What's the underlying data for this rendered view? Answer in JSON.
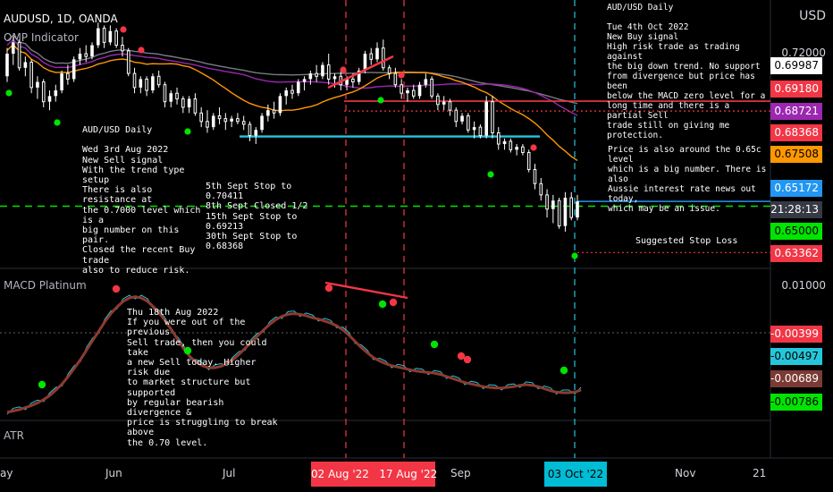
{
  "header": {
    "symbol": "AUDUSD, 1D, OANDA",
    "indicator": "OMP Indicator"
  },
  "axis": {
    "currency": "USD",
    "top_tick": "0.72000",
    "macd_tick": "0.01000"
  },
  "price_labels": [
    {
      "value": "0.69987",
      "bg": "#ffffff",
      "fg": "#000000"
    },
    {
      "value": "0.69180",
      "bg": "#f23645",
      "fg": "#ffffff"
    },
    {
      "value": "0.68721",
      "bg": "#9c27b0",
      "fg": "#ffffff"
    },
    {
      "value": "0.68368",
      "bg": "#f23645",
      "fg": "#ffffff"
    },
    {
      "value": "0.67508",
      "bg": "#ff9800",
      "fg": "#000000"
    },
    {
      "value": "0.65172",
      "bg": "#2196f3",
      "fg": "#ffffff"
    },
    {
      "value": "21:28:13",
      "bg": "#363a45",
      "fg": "#ffffff"
    },
    {
      "value": "0.65000",
      "bg": "#00e400",
      "fg": "#000000"
    },
    {
      "value": "0.63362",
      "bg": "#f23645",
      "fg": "#ffffff"
    }
  ],
  "macd_labels": [
    {
      "value": "-0.00399",
      "bg": "#f23645",
      "fg": "#ffffff"
    },
    {
      "value": "-0.00497",
      "bg": "#26c6da",
      "fg": "#000000"
    },
    {
      "value": "-0.00689",
      "bg": "#7b3b34",
      "fg": "#ffffff"
    },
    {
      "value": "-0.00786",
      "bg": "#00e400",
      "fg": "#000000"
    }
  ],
  "panels": {
    "macd": "MACD Platinum",
    "atr": "ATR"
  },
  "x_axis": {
    "labels": [
      "ay",
      "Jun",
      "Jul",
      "Sep",
      "Nov",
      "21"
    ],
    "highlight_red": "02 Aug '22   17 Aug '22",
    "highlight_blue": "03 Oct '22"
  },
  "annotations": {
    "oct": "AUD/USD Daily\n\nTue 4th Oct 2022\nNew Buy signal\nHigh risk trade as trading against\nthe big down trend. No support\nfrom divergence but price has been\nbelow the MACD zero level for a\nlong time and there is a partial Sell\ntrade still on giving me protection.",
    "price": "Price is also around the 0.65c level\nwhich is a big number. There is also\nAussie interest rate news out today,\nwhich may be an issue.",
    "aug3": "AUD/USD Daily\n\nWed 3rd Aug 2022\nNew Sell signal\nWith the trend type setup\nThere is also resistance at\nthe 0.7000 level which is a\nbig number on this pair.\nClosed the recent Buy trade\nalso to reduce risk.",
    "stops": "5th Sept Stop to 0.70411\n8th Sept Closed 1/2\n15th Sept Stop to 0.69213\n30th Sept Stop to 0.68368",
    "aug18": "Thu 18th Aug 2022\nIf you were out of the previous\nSell trade, then you could take\na new Sell today. Higher risk due\nto market structure but supported\nby regular bearish divergence &\nprice is struggling to break above\nthe 0.70 level.",
    "stop": "Suggested Stop Loss"
  },
  "chart_data": {
    "type": "candlestick",
    "symbol": "AUDUSD",
    "timeframe": "1D",
    "price_range": [
      0.628,
      0.723
    ],
    "candles": [
      [
        0.696,
        0.706,
        0.694,
        0.704
      ],
      [
        0.704,
        0.71,
        0.7,
        0.708
      ],
      [
        0.708,
        0.709,
        0.698,
        0.699
      ],
      [
        0.699,
        0.703,
        0.696,
        0.701
      ],
      [
        0.701,
        0.702,
        0.69,
        0.692
      ],
      [
        0.692,
        0.696,
        0.688,
        0.694
      ],
      [
        0.694,
        0.695,
        0.685,
        0.687
      ],
      [
        0.687,
        0.691,
        0.684,
        0.689
      ],
      [
        0.689,
        0.693,
        0.687,
        0.691
      ],
      [
        0.691,
        0.698,
        0.69,
        0.697
      ],
      [
        0.697,
        0.7,
        0.693,
        0.695
      ],
      [
        0.695,
        0.703,
        0.694,
        0.702
      ],
      [
        0.702,
        0.706,
        0.7,
        0.704
      ],
      [
        0.704,
        0.707,
        0.701,
        0.703
      ],
      [
        0.703,
        0.708,
        0.702,
        0.707
      ],
      [
        0.707,
        0.715,
        0.706,
        0.713
      ],
      [
        0.713,
        0.714,
        0.706,
        0.708
      ],
      [
        0.708,
        0.714,
        0.707,
        0.712
      ],
      [
        0.712,
        0.713,
        0.706,
        0.707
      ],
      [
        0.707,
        0.71,
        0.703,
        0.705
      ],
      [
        0.705,
        0.706,
        0.696,
        0.697
      ],
      [
        0.697,
        0.699,
        0.69,
        0.692
      ],
      [
        0.692,
        0.696,
        0.69,
        0.695
      ],
      [
        0.695,
        0.696,
        0.689,
        0.691
      ],
      [
        0.691,
        0.697,
        0.69,
        0.696
      ],
      [
        0.696,
        0.698,
        0.692,
        0.693
      ],
      [
        0.693,
        0.694,
        0.685,
        0.687
      ],
      [
        0.687,
        0.691,
        0.685,
        0.69
      ],
      [
        0.69,
        0.692,
        0.686,
        0.688
      ],
      [
        0.688,
        0.689,
        0.683,
        0.685
      ],
      [
        0.685,
        0.689,
        0.683,
        0.688
      ],
      [
        0.688,
        0.69,
        0.682,
        0.683
      ],
      [
        0.683,
        0.685,
        0.678,
        0.68
      ],
      [
        0.68,
        0.684,
        0.676,
        0.678
      ],
      [
        0.678,
        0.683,
        0.677,
        0.682
      ],
      [
        0.682,
        0.685,
        0.679,
        0.681
      ],
      [
        0.681,
        0.683,
        0.677,
        0.68
      ],
      [
        0.68,
        0.682,
        0.678,
        0.681
      ],
      [
        0.681,
        0.683,
        0.679,
        0.68
      ],
      [
        0.68,
        0.682,
        0.677,
        0.679
      ],
      [
        0.679,
        0.68,
        0.673,
        0.675
      ],
      [
        0.675,
        0.678,
        0.672,
        0.677
      ],
      [
        0.677,
        0.683,
        0.676,
        0.682
      ],
      [
        0.682,
        0.686,
        0.68,
        0.684
      ],
      [
        0.684,
        0.687,
        0.681,
        0.683
      ],
      [
        0.683,
        0.69,
        0.682,
        0.689
      ],
      [
        0.689,
        0.692,
        0.686,
        0.691
      ],
      [
        0.691,
        0.693,
        0.688,
        0.69
      ],
      [
        0.69,
        0.695,
        0.689,
        0.694
      ],
      [
        0.694,
        0.696,
        0.691,
        0.695
      ],
      [
        0.695,
        0.698,
        0.693,
        0.697
      ],
      [
        0.697,
        0.7,
        0.694,
        0.696
      ],
      [
        0.696,
        0.701,
        0.695,
        0.7
      ],
      [
        0.7,
        0.704,
        0.693,
        0.695
      ],
      [
        0.695,
        0.697,
        0.692,
        0.696
      ],
      [
        0.696,
        0.698,
        0.691,
        0.693
      ],
      [
        0.693,
        0.696,
        0.691,
        0.695
      ],
      [
        0.695,
        0.697,
        0.692,
        0.694
      ],
      [
        0.694,
        0.699,
        0.693,
        0.698
      ],
      [
        0.698,
        0.705,
        0.697,
        0.704
      ],
      [
        0.704,
        0.706,
        0.7,
        0.702
      ],
      [
        0.702,
        0.708,
        0.701,
        0.706
      ],
      [
        0.706,
        0.709,
        0.698,
        0.699
      ],
      [
        0.699,
        0.7,
        0.695,
        0.697
      ],
      [
        0.697,
        0.699,
        0.692,
        0.693
      ],
      [
        0.693,
        0.695,
        0.688,
        0.69
      ],
      [
        0.69,
        0.692,
        0.687,
        0.691
      ],
      [
        0.691,
        0.693,
        0.688,
        0.689
      ],
      [
        0.689,
        0.694,
        0.688,
        0.693
      ],
      [
        0.693,
        0.697,
        0.692,
        0.695
      ],
      [
        0.695,
        0.696,
        0.688,
        0.689
      ],
      [
        0.689,
        0.69,
        0.684,
        0.686
      ],
      [
        0.686,
        0.689,
        0.684,
        0.687
      ],
      [
        0.687,
        0.688,
        0.682,
        0.684
      ],
      [
        0.684,
        0.685,
        0.678,
        0.68
      ],
      [
        0.68,
        0.683,
        0.679,
        0.682
      ],
      [
        0.682,
        0.683,
        0.676,
        0.677
      ],
      [
        0.677,
        0.68,
        0.674,
        0.678
      ],
      [
        0.678,
        0.679,
        0.674,
        0.675
      ],
      [
        0.675,
        0.689,
        0.674,
        0.687
      ],
      [
        0.687,
        0.689,
        0.674,
        0.676
      ],
      [
        0.676,
        0.678,
        0.67,
        0.672
      ],
      [
        0.672,
        0.674,
        0.67,
        0.673
      ],
      [
        0.673,
        0.674,
        0.669,
        0.67
      ],
      [
        0.67,
        0.672,
        0.668,
        0.671
      ],
      [
        0.671,
        0.672,
        0.668,
        0.669
      ],
      [
        0.669,
        0.67,
        0.662,
        0.663
      ],
      [
        0.663,
        0.665,
        0.656,
        0.658
      ],
      [
        0.658,
        0.66,
        0.652,
        0.654
      ],
      [
        0.654,
        0.656,
        0.646,
        0.649
      ],
      [
        0.649,
        0.654,
        0.644,
        0.652
      ],
      [
        0.652,
        0.653,
        0.642,
        0.643
      ],
      [
        0.643,
        0.655,
        0.641,
        0.653
      ],
      [
        0.653,
        0.655,
        0.645,
        0.646
      ],
      [
        0.646,
        0.654,
        0.645,
        0.6517
      ]
    ],
    "support_resistance": {
      "resistance": 0.6872,
      "stop_dotted": 0.6837,
      "support": 0.6747,
      "price_line": 0.6517,
      "suggested_stop": 0.6336,
      "big_number": 0.65
    },
    "macd_range": [
      -0.011,
      0.0115
    ],
    "macd_values": [
      -0.0098,
      -0.0096,
      -0.0094,
      -0.0091,
      -0.0088,
      -0.0084,
      -0.0079,
      -0.0073,
      -0.0065,
      -0.0056,
      -0.0045,
      -0.0033,
      -0.002,
      -0.0006,
      0.0008,
      0.0022,
      0.0036,
      0.0048,
      0.0058,
      0.0066,
      0.0071,
      0.0073,
      0.0071,
      0.0066,
      0.0058,
      0.0048,
      0.0036,
      0.0023,
      0.0009,
      -0.0005,
      -0.0016,
      -0.0024,
      -0.0029,
      -0.0032,
      -0.0032,
      -0.003,
      -0.0026,
      -0.002,
      -0.0012,
      -0.0003,
      0.0006,
      0.0015,
      0.0024,
      0.0032,
      0.0039,
      0.0044,
      0.0047,
      0.0048,
      0.0047,
      0.0045,
      0.0042,
      0.004,
      0.0037,
      0.0034,
      0.003,
      0.0024,
      0.0016,
      0.0007,
      -0.0002,
      -0.001,
      -0.0017,
      -0.0022,
      -0.0026,
      -0.0029,
      -0.0031,
      -0.0033,
      -0.0035,
      -0.0037,
      -0.0038,
      -0.0039,
      -0.004,
      -0.0042,
      -0.0045,
      -0.0048,
      -0.0051,
      -0.0054,
      -0.0056,
      -0.0058,
      -0.006,
      -0.0061,
      -0.0062,
      -0.0062,
      -0.0061,
      -0.006,
      -0.0058,
      -0.0057,
      -0.0058,
      -0.006,
      -0.0063,
      -0.0066,
      -0.0068,
      -0.0069,
      -0.0069,
      -0.0068,
      -0.0065
    ]
  }
}
